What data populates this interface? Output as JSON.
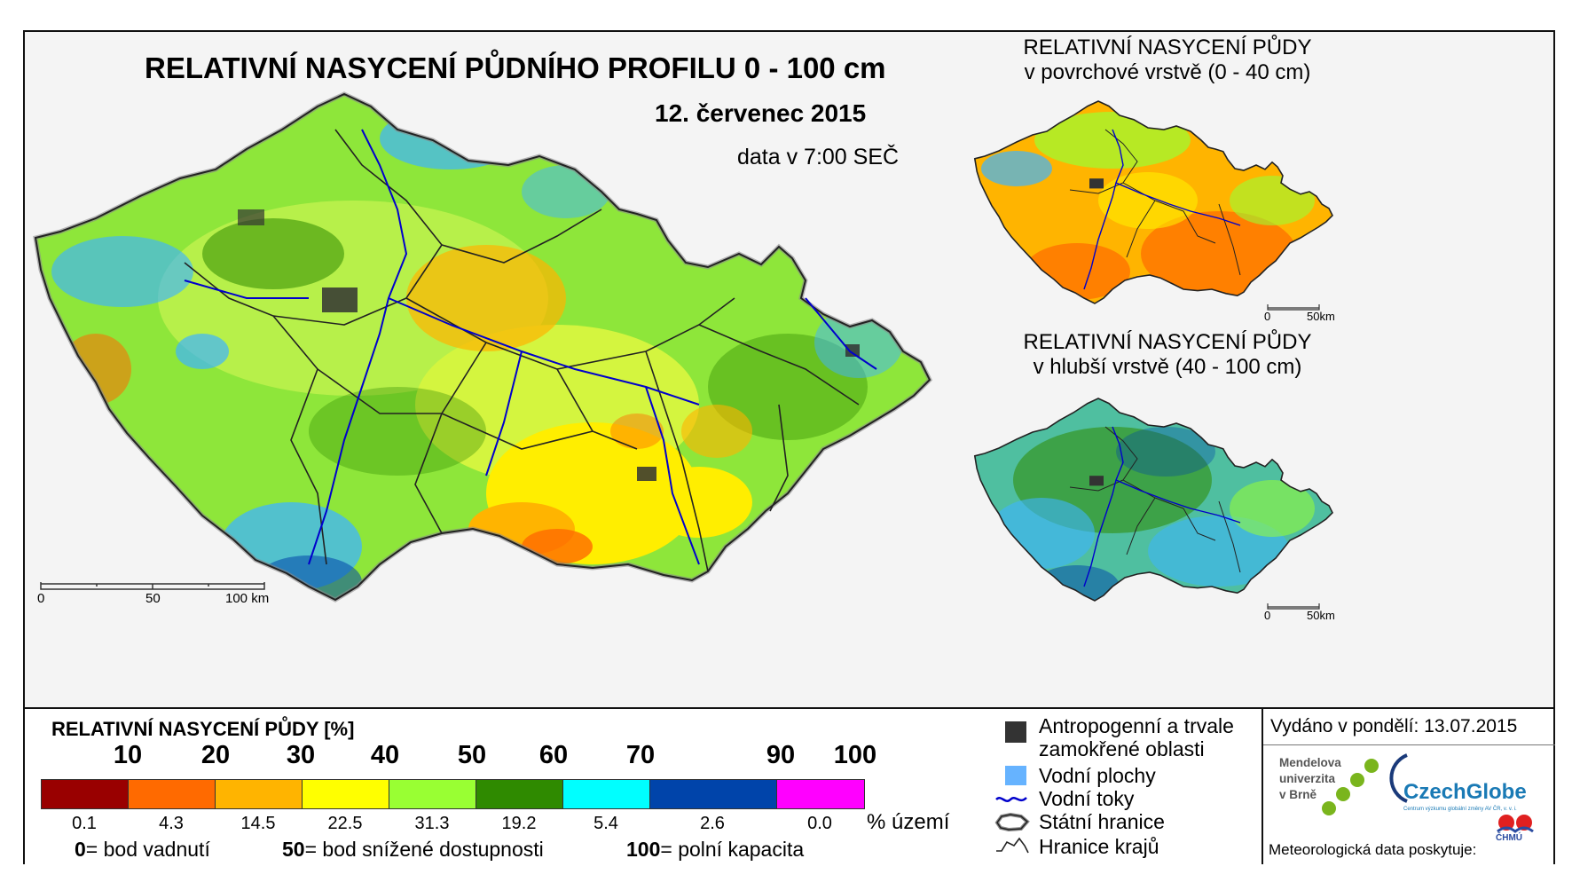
{
  "main_map": {
    "title": "RELATIVNÍ NASYCENÍ PŮDNÍHO PROFILU 0 - 100 cm",
    "date": "12. červenec 2015",
    "time": "data v 7:00 SEČ",
    "scale_labels": [
      "0",
      "50",
      "100 km"
    ]
  },
  "surface_map": {
    "title_line1": "RELATIVNÍ NASYCENÍ PŮDY",
    "title_line2": "v povrchové vrstvě (0 - 40 cm)",
    "scale_labels": [
      "0",
      "50km"
    ]
  },
  "deep_map": {
    "title_line1": "RELATIVNÍ NASYCENÍ PŮDY",
    "title_line2": "v hlubší vrstvě (40 - 100 cm)",
    "scale_labels": [
      "0",
      "50km"
    ]
  },
  "legend": {
    "title": "RELATIVNÍ NASYCENÍ PŮDY [%]",
    "ticks": [
      "10",
      "20",
      "30",
      "40",
      "50",
      "60",
      "70",
      "90",
      "100"
    ],
    "classes": [
      {
        "color": "#990000",
        "percent": "0.1"
      },
      {
        "color": "#ff6a00",
        "percent": "4.3"
      },
      {
        "color": "#ffb400",
        "percent": "14.5"
      },
      {
        "color": "#ffff00",
        "percent": "22.5"
      },
      {
        "color": "#99ff33",
        "percent": "31.3"
      },
      {
        "color": "#2f8a00",
        "percent": "19.2"
      },
      {
        "color": "#00ffff",
        "percent": "5.4"
      },
      {
        "color": "#0044aa",
        "percent": "2.6"
      },
      {
        "color": "#ff00ff",
        "percent": "0.0"
      }
    ],
    "percent_unit": "% území",
    "definitions": [
      {
        "value": "0",
        "text": "= bod vadnutí"
      },
      {
        "value": "50",
        "text": "= bod snížené dostupnosti"
      },
      {
        "value": "100",
        "text": "= polní kapacita"
      }
    ]
  },
  "map_key": {
    "anthropogenic": "Antropogenní a trvale zamokřené oblasti",
    "anthropogenic_line1": "Antropogenní a trvale",
    "anthropogenic_line2": "zamokřené oblasti",
    "water_areas": "Vodní plochy",
    "rivers": "Vodní toky",
    "state_border": "Státní hranice",
    "region_border": "Hranice krajů"
  },
  "issue": {
    "issued": "Vydáno v pondělí: 13.07.2015",
    "mendel_line1": "Mendelova",
    "mendel_line2": "univerzita",
    "mendel_line3": "v Brně",
    "czechglobe": "CzechGlobe",
    "czechglobe_sub": "Centrum výzkumu globální změny AV ČR, v. v. i.",
    "provider": "Meteorologická data poskytuje:",
    "chmu": "ČHMÚ"
  },
  "colors": {
    "anthropogenic": "#333333",
    "water": "#66b3ff",
    "river": "#0000cc",
    "border": "#222222"
  }
}
